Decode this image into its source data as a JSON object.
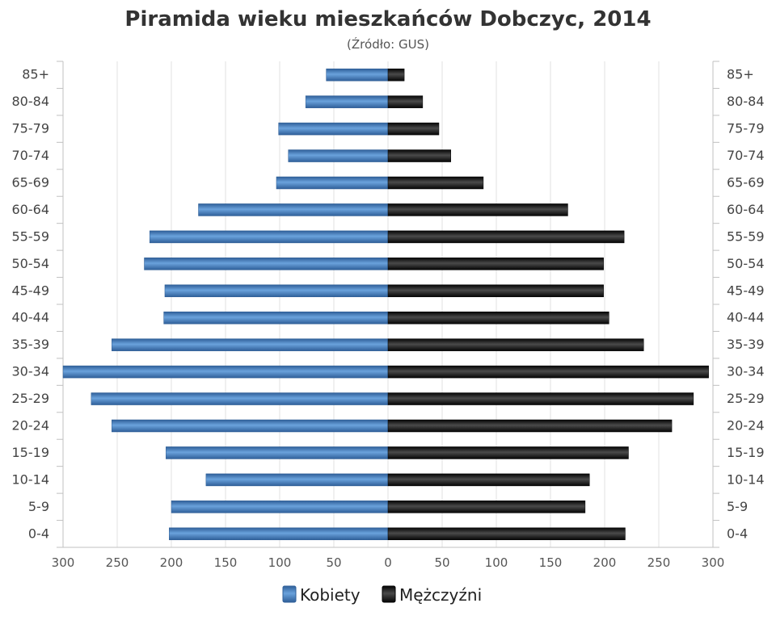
{
  "chart_data": {
    "type": "bar",
    "orientation": "horizontal",
    "title": "Piramida wieku mieszkańców Dobczyc, 2014",
    "subtitle": "(Źródło: GUS)",
    "categories": [
      "85+",
      "80-84",
      "75-79",
      "70-74",
      "65-69",
      "60-64",
      "55-59",
      "50-54",
      "45-49",
      "40-44",
      "35-39",
      "30-34",
      "25-29",
      "20-24",
      "15-19",
      "10-14",
      "5-9",
      "0-4"
    ],
    "series": [
      {
        "name": "Kobiety",
        "color": "#3b78b8",
        "values": [
          57,
          76,
          101,
          92,
          103,
          175,
          220,
          225,
          206,
          207,
          255,
          300,
          274,
          255,
          205,
          168,
          200,
          202
        ]
      },
      {
        "name": "Mężczyźni",
        "color": "#1a1a1a",
        "values": [
          15,
          32,
          47,
          58,
          88,
          166,
          218,
          199,
          199,
          204,
          236,
          296,
          282,
          262,
          222,
          186,
          182,
          219
        ]
      }
    ],
    "x_ticks": [
      "300",
      "250",
      "200",
      "150",
      "100",
      "50",
      "0",
      "50",
      "100",
      "150",
      "200",
      "250",
      "300"
    ],
    "xlim": [
      -300,
      300
    ],
    "grid": true,
    "legend": "bottom-center"
  }
}
